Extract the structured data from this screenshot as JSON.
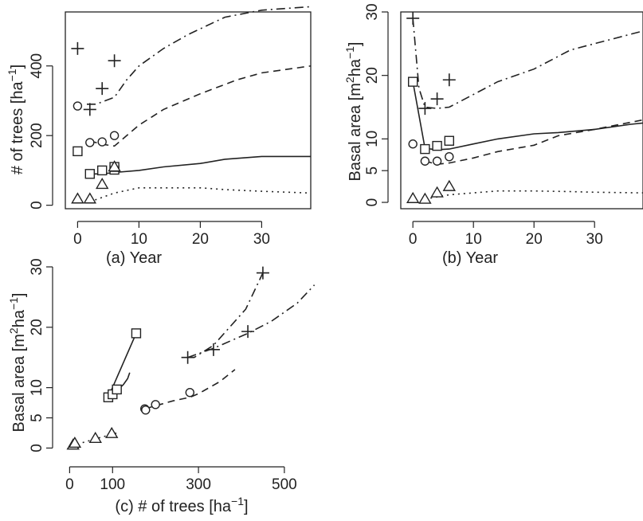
{
  "figure": {
    "style": {
      "line_color": "#222222",
      "background": "#ffffff"
    }
  },
  "chart_data": [
    {
      "type": "line",
      "panel": "a",
      "xlabel": "(a) Year",
      "ylabel_main": "# of trees [ha",
      "ylabel_sup": "−1",
      "ylabel_end": "]",
      "xlim": [
        -2,
        38
      ],
      "ylim": [
        -10,
        555
      ],
      "x_ticks": [
        0,
        10,
        20,
        30
      ],
      "y_ticks": [
        0,
        200,
        400
      ],
      "lines": [
        {
          "style": "solid",
          "x": [
            2,
            4,
            6,
            10,
            14,
            20,
            24,
            30,
            38
          ],
          "y": [
            90,
            90,
            94,
            100,
            110,
            120,
            132,
            140,
            140
          ]
        },
        {
          "style": "dashed",
          "x": [
            2,
            4,
            6,
            10,
            14,
            20,
            26,
            30,
            38
          ],
          "y": [
            185,
            175,
            170,
            230,
            275,
            320,
            360,
            380,
            400
          ]
        },
        {
          "style": "dashdot",
          "x": [
            1.5,
            3,
            6,
            8,
            10,
            14,
            18,
            24,
            30,
            38
          ],
          "y": [
            290,
            290,
            310,
            360,
            400,
            450,
            490,
            540,
            560,
            570
          ]
        },
        {
          "style": "dotted",
          "x": [
            2,
            6,
            10,
            14,
            20,
            24,
            30,
            38
          ],
          "y": [
            10,
            35,
            50,
            50,
            50,
            45,
            40,
            35
          ]
        }
      ],
      "markers": [
        {
          "shape": "plus",
          "x": [
            0,
            2,
            4,
            6
          ],
          "y": [
            450,
            275,
            335,
            415
          ]
        },
        {
          "shape": "circle",
          "x": [
            0,
            2,
            4,
            6
          ],
          "y": [
            285,
            180,
            182,
            200
          ]
        },
        {
          "shape": "square",
          "x": [
            0,
            2,
            4,
            6,
            6
          ],
          "y": [
            155,
            90,
            100,
            102,
            110
          ]
        },
        {
          "shape": "triangle",
          "x": [
            0,
            2,
            4,
            6
          ],
          "y": [
            18,
            18,
            60,
            110
          ]
        }
      ]
    },
    {
      "type": "line",
      "panel": "b",
      "xlabel": "(b) Year",
      "ylabel_main": "Basal area [m",
      "ylabel_sup": "2",
      "ylabel_mid": "ha",
      "ylabel_sup2": "−1",
      "ylabel_end": "]",
      "xlim": [
        -2,
        38
      ],
      "ylim": [
        -1,
        30
      ],
      "x_ticks": [
        0,
        10,
        20,
        30
      ],
      "y_ticks": [
        0,
        5,
        10,
        20,
        30
      ],
      "lines": [
        {
          "style": "solid",
          "x": [
            0,
            2,
            4,
            6,
            10,
            14,
            20,
            24,
            30,
            36,
            38
          ],
          "y": [
            19,
            8.5,
            8.3,
            8.4,
            9.2,
            10,
            10.8,
            11,
            11.5,
            12.3,
            12.5
          ]
        },
        {
          "style": "dashed",
          "x": [
            2,
            4,
            6,
            10,
            14,
            20,
            24,
            30,
            38
          ],
          "y": [
            6.5,
            6,
            6.2,
            7,
            8,
            9,
            10.5,
            11.5,
            13
          ]
        },
        {
          "style": "dashdot",
          "x": [
            0,
            1,
            2,
            4,
            6,
            10,
            14,
            20,
            26,
            30,
            38
          ],
          "y": [
            29,
            18,
            15,
            14.8,
            15,
            17,
            19,
            21,
            24,
            25,
            27
          ]
        },
        {
          "style": "dotted",
          "x": [
            2,
            6,
            10,
            14,
            20,
            26,
            30,
            38
          ],
          "y": [
            0.5,
            1.2,
            1.5,
            1.8,
            1.8,
            1.7,
            1.6,
            1.5
          ]
        }
      ],
      "markers": [
        {
          "shape": "plus",
          "x": [
            0,
            2,
            4,
            6
          ],
          "y": [
            29,
            14.8,
            16.3,
            19.3
          ]
        },
        {
          "shape": "circle",
          "x": [
            0,
            2,
            4,
            6
          ],
          "y": [
            9.2,
            6.5,
            6.5,
            7.2
          ]
        },
        {
          "shape": "square",
          "x": [
            0,
            2,
            4,
            6
          ],
          "y": [
            19,
            8.4,
            8.9,
            9.7
          ]
        },
        {
          "shape": "triangle",
          "x": [
            0,
            2,
            4,
            6
          ],
          "y": [
            0.6,
            0.5,
            1.5,
            2.5
          ]
        }
      ]
    },
    {
      "type": "scatter",
      "panel": "c",
      "xlabel_main": "(c) # of trees [ha",
      "xlabel_sup": "−1",
      "xlabel_end": "]",
      "ylabel_main": "Basal area [m",
      "ylabel_sup": "2",
      "ylabel_mid": "ha",
      "ylabel_sup2": "−1",
      "ylabel_end": "]",
      "xlim": [
        -10,
        580
      ],
      "ylim": [
        -1,
        30
      ],
      "x_ticks": [
        0,
        100,
        300,
        500
      ],
      "y_ticks": [
        0,
        5,
        10,
        20,
        30
      ],
      "lines": [
        {
          "style": "solid",
          "x": [
            90,
            100,
            110,
            125,
            135,
            140
          ],
          "y": [
            8.4,
            9,
            9.5,
            10.5,
            11.5,
            12.5
          ]
        },
        {
          "style": "solid",
          "x": [
            155,
            90
          ],
          "y": [
            19,
            8.4
          ]
        },
        {
          "style": "dashed",
          "x": [
            175,
            200,
            240,
            280,
            300,
            350,
            385
          ],
          "y": [
            6.5,
            7,
            7.8,
            8.4,
            9,
            11,
            13
          ]
        },
        {
          "style": "dashdot",
          "x": [
            275,
            290,
            335,
            360,
            410,
            450
          ],
          "y": [
            15,
            15,
            17,
            19,
            23,
            29
          ]
        },
        {
          "style": "dashdot",
          "x": [
            275,
            335,
            415,
            470,
            530,
            570
          ],
          "y": [
            15,
            16.5,
            19,
            21,
            24,
            27
          ]
        },
        {
          "style": "dotted",
          "x": [
            18,
            35,
            60,
            95,
            110
          ],
          "y": [
            0.6,
            1,
            1.5,
            2.2,
            2.5
          ]
        }
      ],
      "markers": [
        {
          "shape": "plus",
          "x": [
            450,
            275,
            335,
            415
          ],
          "y": [
            29,
            15,
            16.3,
            19.3
          ]
        },
        {
          "shape": "circle",
          "x": [
            175,
            177,
            200,
            280
          ],
          "y": [
            6.5,
            6.3,
            7.2,
            9.2
          ]
        },
        {
          "shape": "square",
          "x": [
            155,
            90,
            100,
            110
          ],
          "y": [
            19,
            8.4,
            8.9,
            9.7
          ]
        },
        {
          "shape": "triangle",
          "x": [
            8,
            12,
            60,
            98
          ],
          "y": [
            0.5,
            0.8,
            1.6,
            2.4
          ]
        }
      ]
    }
  ]
}
